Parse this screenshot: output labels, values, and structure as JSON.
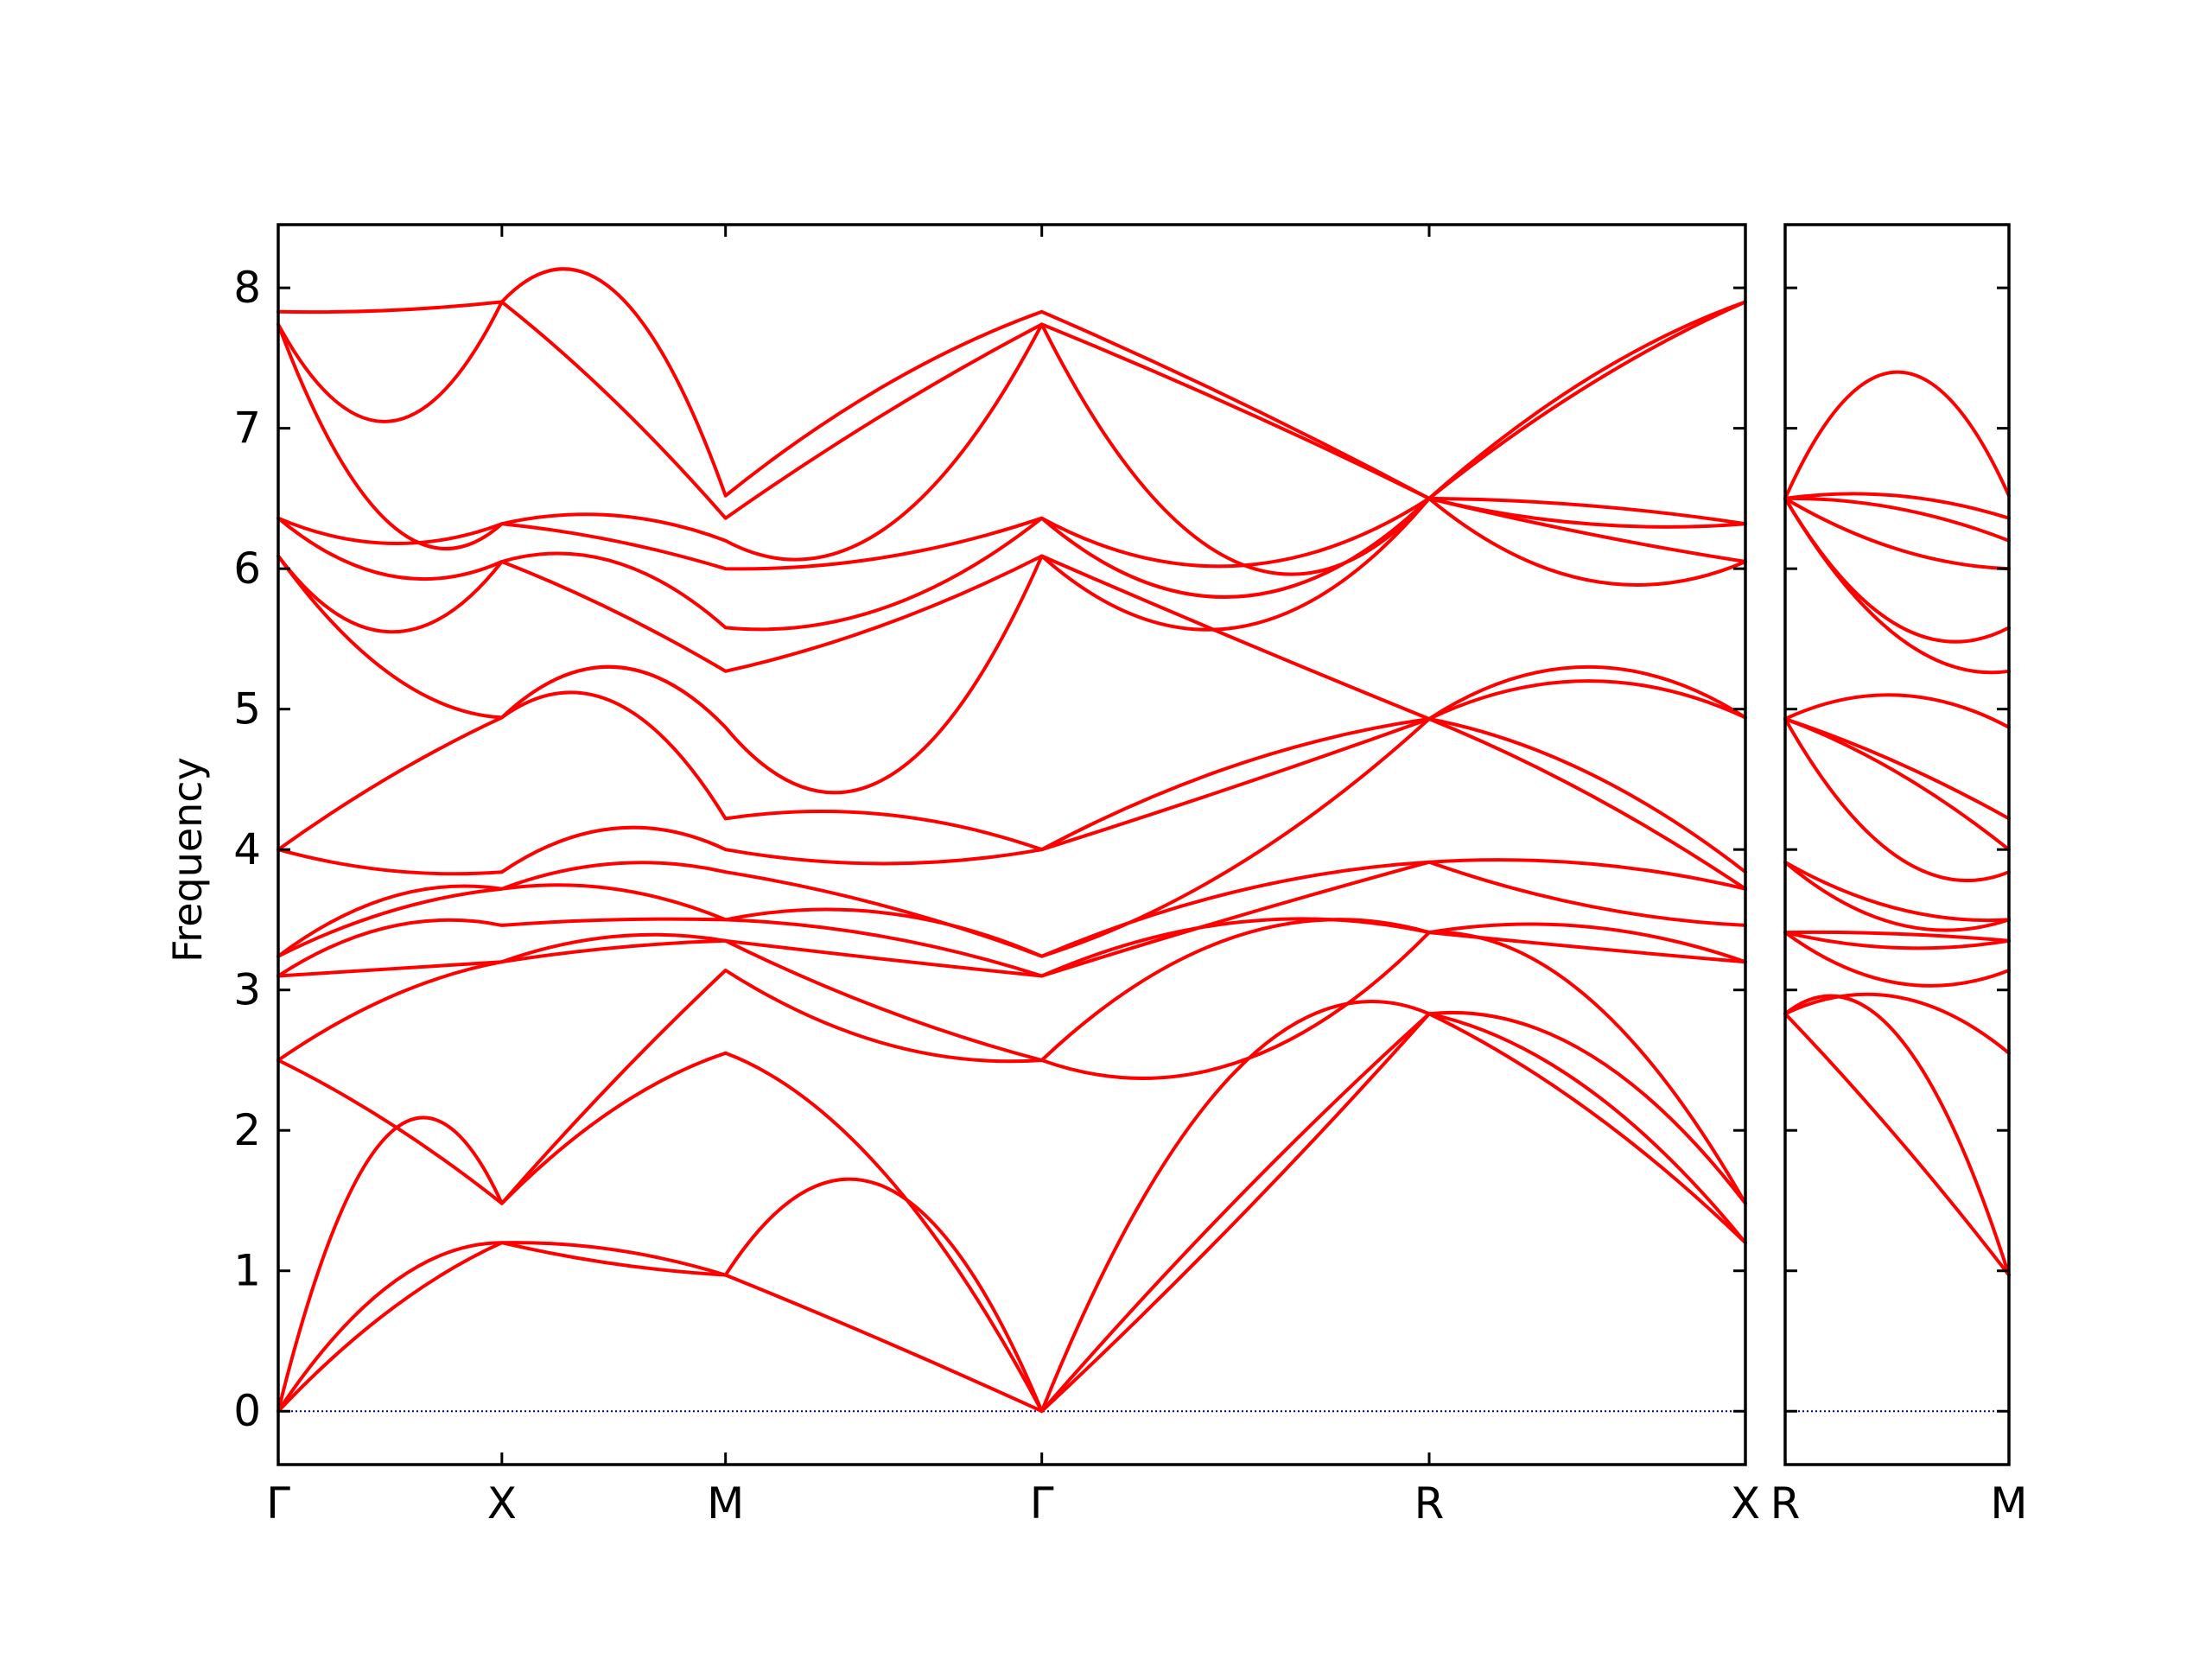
{
  "chart_data": {
    "type": "line",
    "ylabel": "Frequency",
    "ylim": [
      -0.38,
      8.45
    ],
    "yticks": [
      0,
      1,
      2,
      3,
      4,
      5,
      6,
      7,
      8
    ],
    "line_color": "#ff0000",
    "zero_line_color": "#0000aa",
    "grid": false,
    "legend": "none",
    "panels": [
      {
        "segments": [
          {
            "from": "Γ",
            "to": "X",
            "length": 1.0
          },
          {
            "from": "X",
            "to": "M",
            "length": 1.0
          },
          {
            "from": "M",
            "to": "Γ",
            "length": 1.414
          },
          {
            "from": "Γ",
            "to": "R",
            "length": 1.732
          },
          {
            "from": "R",
            "to": "X",
            "length": 1.414
          }
        ],
        "xtick_labels": [
          "Γ",
          "X",
          "M",
          "Γ",
          "R",
          "X"
        ]
      },
      {
        "segments": [
          {
            "from": "R",
            "to": "M",
            "length": 1.0
          }
        ],
        "xtick_labels": [
          "R",
          "M"
        ]
      }
    ],
    "node_frequencies": {
      "Γ1": [
        0,
        0,
        0,
        2.5,
        2.5,
        3.1,
        3.1,
        3.24,
        3.24,
        4.0,
        4.0,
        6.09,
        6.09,
        6.36,
        6.36,
        7.74,
        7.74,
        7.83
      ],
      "X": [
        1.2,
        1.2,
        1.48,
        1.48,
        3.2,
        3.2,
        3.46,
        3.72,
        3.72,
        3.84,
        4.94,
        4.94,
        6.05,
        6.05,
        6.32,
        6.32,
        7.9,
        7.9
      ],
      "M": [
        0.97,
        0.97,
        2.55,
        3.14,
        3.35,
        3.35,
        3.5,
        3.5,
        3.84,
        4.0,
        4.22,
        4.87,
        5.27,
        5.58,
        6.0,
        6.2,
        6.36,
        6.52
      ],
      "Γ2": [
        0,
        0,
        0,
        2.5,
        2.5,
        3.1,
        3.1,
        3.24,
        3.24,
        4.0,
        4.0,
        6.09,
        6.09,
        6.36,
        6.36,
        7.74,
        7.74,
        7.83
      ],
      "R": [
        2.83,
        2.83,
        2.83,
        3.41,
        3.41,
        3.41,
        3.91,
        3.91,
        4.93,
        4.93,
        4.93,
        4.93,
        6.5,
        6.5,
        6.5,
        6.5,
        6.5,
        6.5
      ],
      "X2": [
        1.2,
        1.2,
        1.48,
        1.48,
        3.2,
        3.2,
        3.46,
        3.72,
        3.72,
        3.84,
        4.94,
        4.94,
        6.05,
        6.05,
        6.32,
        6.32,
        7.9,
        7.9
      ],
      "R2": [
        2.83,
        2.83,
        2.83,
        3.41,
        3.41,
        3.41,
        3.91,
        3.91,
        4.93,
        4.93,
        4.93,
        4.93,
        6.5,
        6.5,
        6.5,
        6.5,
        6.5,
        6.5
      ],
      "M2": [
        0.97,
        0.97,
        2.55,
        3.14,
        3.35,
        3.35,
        3.5,
        3.5,
        3.84,
        4.0,
        4.22,
        4.87,
        5.27,
        5.58,
        6.0,
        6.2,
        6.36,
        6.52
      ]
    },
    "mid_frequencies": {
      "Γ-X": [
        0.72,
        0.9,
        1.98,
        2.05,
        2.95,
        3.15,
        3.45,
        3.56,
        3.66,
        3.85,
        4.52,
        5.25,
        5.55,
        5.95,
        6.18,
        6.32,
        7.05,
        7.84
      ],
      "X-M": [
        1.05,
        1.15,
        2.15,
        2.35,
        3.3,
        3.38,
        3.5,
        3.72,
        3.9,
        4.15,
        5.05,
        5.3,
        5.7,
        6.05,
        6.2,
        6.38,
        7.2,
        7.98
      ],
      "M-Γ": [
        0.5,
        1.6,
        1.7,
        2.62,
        2.86,
        3.22,
        3.38,
        3.55,
        3.6,
        3.9,
        4.25,
        4.5,
        5.6,
        5.72,
        6.08,
        6.28,
        7.1,
        7.3
      ],
      "Γ-R": [
        1.35,
        1.5,
        2.42,
        2.48,
        3.38,
        3.48,
        3.52,
        3.7,
        3.88,
        4.45,
        4.6,
        5.5,
        5.58,
        5.8,
        6.02,
        6.05,
        7.15,
        7.2
      ],
      "R-X": [
        2.15,
        2.3,
        2.55,
        2.95,
        3.3,
        3.45,
        3.6,
        3.9,
        4.4,
        4.55,
        5.2,
        5.3,
        5.92,
        6.25,
        6.32,
        6.45,
        7.3,
        7.35
      ],
      "R-M": [
        1.95,
        2.68,
        2.95,
        3.05,
        3.3,
        3.4,
        3.47,
        3.58,
        3.95,
        4.55,
        4.62,
        5.1,
        5.52,
        5.6,
        6.14,
        6.43,
        6.52,
        7.4
      ]
    }
  }
}
